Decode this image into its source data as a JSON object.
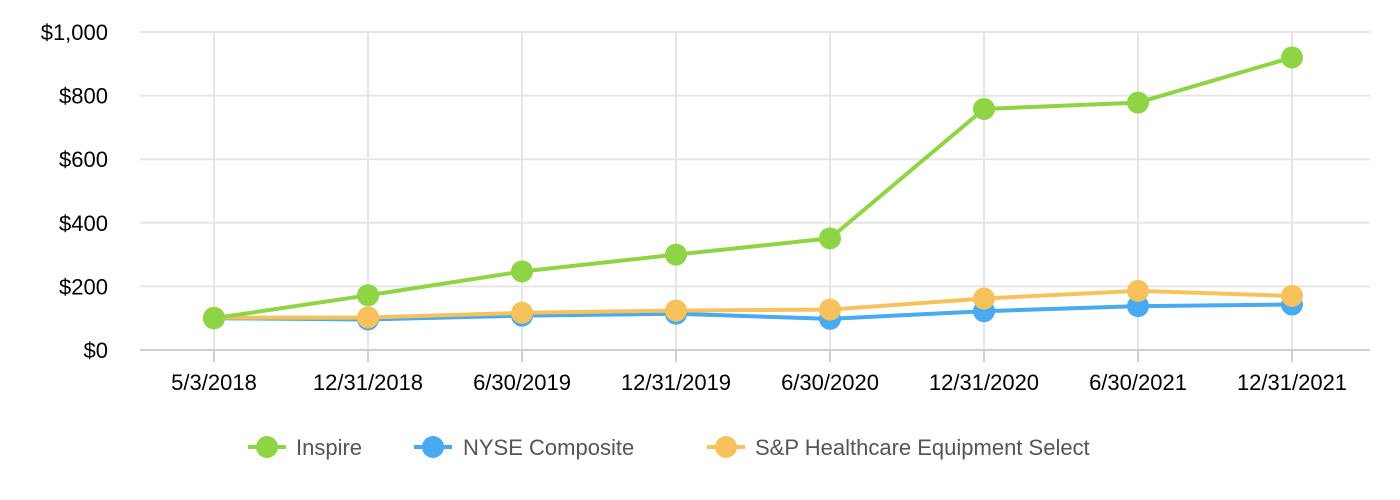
{
  "chart_data": {
    "type": "line",
    "categories": [
      "5/3/2018",
      "12/31/2018",
      "6/30/2019",
      "12/31/2019",
      "6/30/2020",
      "12/31/2020",
      "6/30/2021",
      "12/31/2021"
    ],
    "ylim": [
      0,
      1000
    ],
    "yticks": [
      0,
      200,
      400,
      600,
      800,
      1000
    ],
    "ytick_labels": [
      "$0",
      "$200",
      "$400",
      "$600",
      "$800",
      "$1,000"
    ],
    "grid": true,
    "legend_position": "bottom",
    "series": [
      {
        "name": "Inspire",
        "color": "#8fd444",
        "values": [
          100,
          172,
          247,
          300,
          351,
          758,
          778,
          920
        ]
      },
      {
        "name": "NYSE Composite",
        "color": "#48aaf0",
        "values": [
          100,
          96,
          108,
          114,
          98,
          122,
          138,
          143
        ]
      },
      {
        "name": "S&P Healthcare Equipment Select",
        "color": "#f7c25c",
        "values": [
          102,
          102,
          117,
          124,
          127,
          162,
          186,
          170
        ]
      }
    ]
  }
}
